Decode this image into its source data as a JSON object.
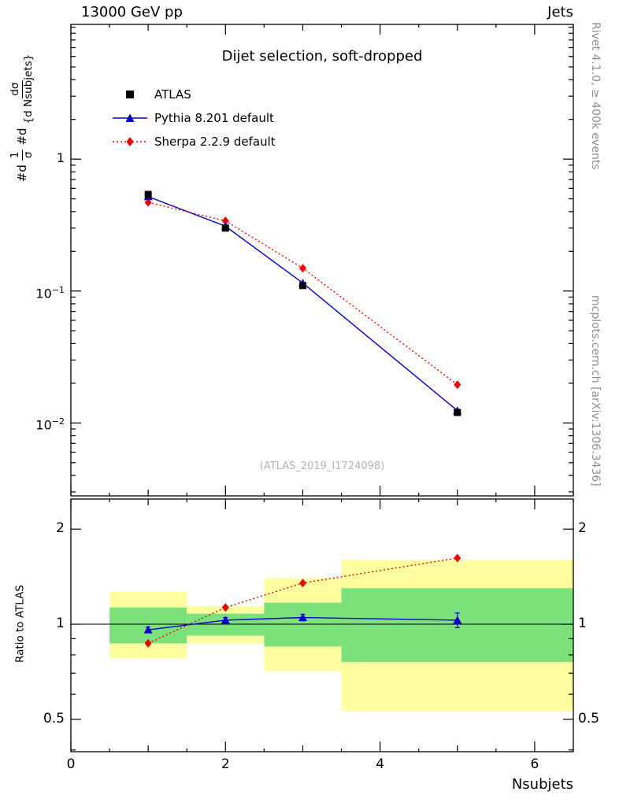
{
  "header": {
    "left": "13000 GeV pp",
    "right": "Jets"
  },
  "plot": {
    "title": "Dijet selection, soft-dropped",
    "watermark": "(ATLAS_2019_I1724098)",
    "ylabel": {
      "pre1": "#d",
      "num1": "1",
      "den1": "σ",
      "pre2": "#d",
      "num2": "dσ",
      "den2": "{d Nsubjets}"
    },
    "xlabel": "Nsubjets"
  },
  "ratio_panel": {
    "ylabel": "Ratio to ATLAS"
  },
  "sidebar": {
    "top_note": "Rivet 4.1.0, ≥ 400k events",
    "bottom_note": "mcplots.cern.ch [arXiv:1306.3436]"
  },
  "colors": {
    "atlas": "#000000",
    "pythia": "#0000cc",
    "sherpa": "#ee0000",
    "band_yellow": "#ffffa0",
    "band_green": "#7be27b",
    "gray_text": "#909090",
    "watermark": "#b4b4b4"
  },
  "chart_data": [
    {
      "type": "line",
      "panel": "main",
      "title": "Dijet selection, soft-dropped",
      "xlabel": "Nsubjets",
      "ylabel": "1/σ dσ/d Nsubjets",
      "yscale": "log",
      "xlim": [
        0,
        6.5
      ],
      "ylim": [
        0.0028,
        10.5
      ],
      "x": [
        1,
        2,
        3,
        5
      ],
      "xticks": [
        {
          "v": 0,
          "label": "0"
        },
        {
          "v": 2,
          "label": "2"
        },
        {
          "v": 4,
          "label": "4"
        },
        {
          "v": 6,
          "label": "6"
        }
      ],
      "yticks": [
        {
          "v": 1,
          "label": "1"
        },
        {
          "v": 0.1,
          "label": "10^−1"
        },
        {
          "v": 0.01,
          "label": "10^−2"
        }
      ],
      "legend_position": "top-left",
      "series": [
        {
          "name": "ATLAS",
          "marker": "square",
          "line": "none",
          "color": "#000000",
          "values": [
            0.54,
            0.3,
            0.11,
            0.012
          ]
        },
        {
          "name": "Pythia 8.201 default",
          "marker": "triangle",
          "line": "solid",
          "color": "#0000cc",
          "values": [
            0.52,
            0.31,
            0.115,
            0.0124
          ]
        },
        {
          "name": "Sherpa 2.2.9 default",
          "marker": "diamond",
          "line": "dotted",
          "color": "#ee0000",
          "values": [
            0.47,
            0.34,
            0.149,
            0.0195
          ]
        }
      ]
    },
    {
      "type": "line",
      "panel": "ratio",
      "ylabel": "Ratio to ATLAS",
      "yscale": "log",
      "xlim": [
        0,
        6.5
      ],
      "ylim": [
        0.395,
        2.49
      ],
      "x": [
        1,
        2,
        3,
        5
      ],
      "yticks": [
        {
          "v": 2,
          "label": "2"
        },
        {
          "v": 1,
          "label": "1"
        },
        {
          "v": 0.5,
          "label": "0.5"
        }
      ],
      "reference_line": 1,
      "bands": [
        {
          "x0": 0.5,
          "x1": 1.5,
          "yellow": [
            0.78,
            1.27
          ],
          "green": [
            0.87,
            1.13
          ]
        },
        {
          "x0": 1.5,
          "x1": 2.5,
          "yellow": [
            0.87,
            1.14
          ],
          "green": [
            0.92,
            1.08
          ]
        },
        {
          "x0": 2.5,
          "x1": 3.5,
          "yellow": [
            0.71,
            1.4
          ],
          "green": [
            0.85,
            1.17
          ]
        },
        {
          "x0": 3.5,
          "x1": 6.5,
          "yellow": [
            0.53,
            1.6
          ],
          "green": [
            0.76,
            1.3
          ]
        }
      ],
      "series": [
        {
          "name": "Pythia 8.201 default",
          "marker": "triangle",
          "line": "solid",
          "color": "#0000cc",
          "values": [
            0.96,
            1.03,
            1.05,
            1.03
          ],
          "yerr": [
            0.02,
            0.02,
            0.025,
            0.055
          ]
        },
        {
          "name": "Sherpa 2.2.9 default",
          "marker": "diamond",
          "line": "dotted",
          "color": "#ee0000",
          "values": [
            0.87,
            1.13,
            1.35,
            1.62
          ]
        }
      ]
    }
  ]
}
